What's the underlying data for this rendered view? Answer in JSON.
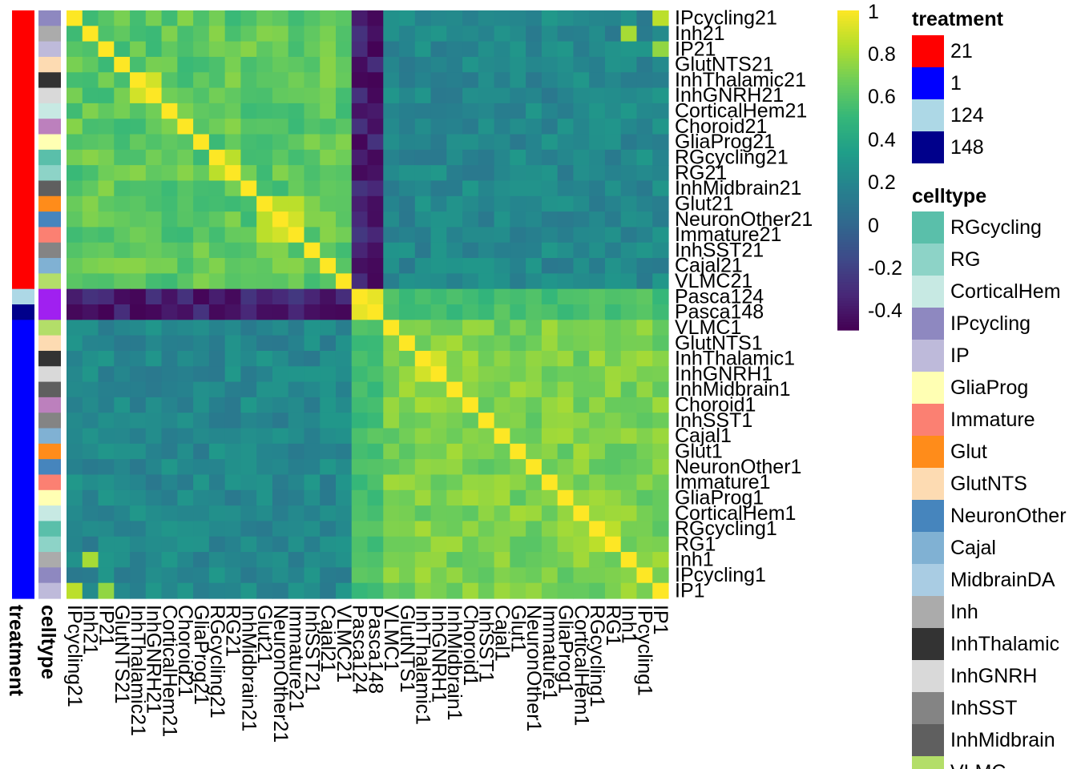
{
  "chart_data": {
    "type": "heatmap",
    "title": "",
    "labels": [
      "IPcycling21",
      "Inh21",
      "IP21",
      "GlutNTS21",
      "InhThalamic21",
      "InhGNRH21",
      "CorticalHem21",
      "Choroid21",
      "GliaProg21",
      "RGcycling21",
      "RG21",
      "InhMidbrain21",
      "Glut21",
      "NeuronOther21",
      "Immature21",
      "InhSST21",
      "Cajal21",
      "VLMC21",
      "Pasca124",
      "Pasca148",
      "VLMC1",
      "GlutNTS1",
      "InhThalamic1",
      "InhGNRH1",
      "InhMidbrain1",
      "Choroid1",
      "InhSST1",
      "Cajal1",
      "Glut1",
      "NeuronOther1",
      "Immature1",
      "GliaProg1",
      "CorticalHem1",
      "RGcycling1",
      "RG1",
      "Inh1",
      "IPcycling1",
      "IP1"
    ],
    "row_labels": [
      "IPcycling21",
      "Inh21",
      "IP21",
      "GlutNTS21",
      "InhThalamic21",
      "InhGNRH21",
      "CorticalHem21",
      "Choroid21",
      "GliaProg21",
      "RGcycling21",
      "RG21",
      "InhMidbrain21",
      "Glut21",
      "NeuronOther21",
      "Immature21",
      "InhSST21",
      "Cajal21",
      "VLMC21",
      "Pasca124",
      "Pasca148",
      "VLMC1",
      "GlutNTS1",
      "InhThalamic1",
      "InhGNRH1",
      "InhMidbrain1",
      "Choroid1",
      "InhSST1",
      "Cajal1",
      "Glut1",
      "NeuronOther1",
      "Immature1",
      "GliaProg1",
      "CorticalHem1",
      "RGcycling1",
      "RG1",
      "Inh1",
      "IPcycling1",
      "IP1"
    ],
    "col_labels": [
      "IPcycling21",
      "Inh21",
      "IP21",
      "GlutNTS21",
      "InhThalamic21",
      "InhGNRH21",
      "CorticalHem21",
      "Choroid21",
      "GliaProg21",
      "RGcycling21",
      "RG21",
      "InhMidbrain21",
      "Glut21",
      "NeuronOther21",
      "Immature21",
      "InhSST21",
      "Cajal21",
      "VLMC21",
      "Pasca124",
      "Pasca148",
      "VLMC1",
      "GlutNTS1",
      "InhThalamic1",
      "InhGNRH1",
      "InhMidbrain1",
      "Choroid1",
      "InhSST1",
      "Cajal1",
      "Glut1",
      "NeuronOther1",
      "Immature1",
      "GliaProg1",
      "CorticalHem1",
      "RGcycling1",
      "RG1",
      "Inh1",
      "IPcycling1",
      "IP1"
    ],
    "row_treatment": [
      "21",
      "21",
      "21",
      "21",
      "21",
      "21",
      "21",
      "21",
      "21",
      "21",
      "21",
      "21",
      "21",
      "21",
      "21",
      "21",
      "21",
      "21",
      "124",
      "148",
      "1",
      "1",
      "1",
      "1",
      "1",
      "1",
      "1",
      "1",
      "1",
      "1",
      "1",
      "1",
      "1",
      "1",
      "1",
      "1",
      "1",
      "1"
    ],
    "row_celltype": [
      "IPcycling",
      "Inh",
      "IP",
      "GlutNTS",
      "InhThalamic",
      "InhGNRH",
      "CorticalHem",
      "Choroid",
      "GliaProg",
      "RGcycling",
      "RG",
      "InhMidbrain",
      "Glut",
      "NeuronOther",
      "Immature",
      "InhSST",
      "Cajal",
      "VLMC",
      "Pasca",
      "Pasca",
      "VLMC",
      "GlutNTS",
      "InhThalamic",
      "InhGNRH",
      "InhMidbrain",
      "Choroid",
      "InhSST",
      "Cajal",
      "Glut",
      "NeuronOther",
      "Immature",
      "GliaProg",
      "CorticalHem",
      "RGcycling",
      "RG",
      "Inh",
      "IPcycling",
      "IP"
    ],
    "value_model": {
      "within_21": 0.62,
      "within_1": 0.7,
      "between_21_1": 0.2,
      "pasca_pasca": 0.95,
      "pasca_1": 0.55,
      "pasca_21_min": -0.5,
      "pasca_21_max": -0.25,
      "diagonal": 1.0
    },
    "special_cells": [
      {
        "row": "InhThalamic21",
        "col": "InhGNRH21",
        "value": 0.9
      },
      {
        "row": "RGcycling21",
        "col": "RG21",
        "value": 0.85
      },
      {
        "row": "InhThalamic1",
        "col": "InhGNRH1",
        "value": 0.9
      },
      {
        "row": "RGcycling1",
        "col": "RG1",
        "value": 0.85
      },
      {
        "row": "Glut21",
        "col": "NeuronOther21",
        "value": 0.85
      },
      {
        "row": "Glut21",
        "col": "Immature21",
        "value": 0.85
      },
      {
        "row": "NeuronOther21",
        "col": "Immature21",
        "value": 0.9
      },
      {
        "row": "IPcycling21",
        "col": "IP1",
        "value": 0.85
      },
      {
        "row": "Inh21",
        "col": "Inh1",
        "value": 0.8
      },
      {
        "row": "IP21",
        "col": "IP1",
        "value": 0.75
      }
    ],
    "colorbar": {
      "ticks": [
        "1",
        "0.8",
        "0.6",
        "0.4",
        "0.2",
        "0",
        "-0.2",
        "-0.4"
      ],
      "tick_values": [
        1,
        0.8,
        0.6,
        0.4,
        0.2,
        0,
        -0.2,
        -0.4
      ],
      "range": [
        -0.5,
        1.0
      ],
      "palette": "viridis"
    },
    "annotation_names": [
      "treatment",
      "celltype"
    ]
  },
  "legend": {
    "treatment": {
      "title": "treatment",
      "entries": [
        {
          "label": "21",
          "color": "#FF0000"
        },
        {
          "label": "1",
          "color": "#0000FF"
        },
        {
          "label": "124",
          "color": "#ADD8E6"
        },
        {
          "label": "148",
          "color": "#00008B"
        }
      ]
    },
    "celltype": {
      "title": "celltype",
      "entries": [
        {
          "label": "RGcycling",
          "color": "#5ABFAA"
        },
        {
          "label": "RG",
          "color": "#8DD3C7"
        },
        {
          "label": "CorticalHem",
          "color": "#C7E9E3"
        },
        {
          "label": "IPcycling",
          "color": "#8E88C0"
        },
        {
          "label": "IP",
          "color": "#BEBADA"
        },
        {
          "label": "GliaProg",
          "color": "#FFFFB3"
        },
        {
          "label": "Immature",
          "color": "#FB8072"
        },
        {
          "label": "Glut",
          "color": "#FF8C1A"
        },
        {
          "label": "GlutNTS",
          "color": "#FDDBB2"
        },
        {
          "label": "NeuronOther",
          "color": "#4685BD"
        },
        {
          "label": "Cajal",
          "color": "#80B1D3"
        },
        {
          "label": "MidbrainDA",
          "color": "#A9CCE3"
        },
        {
          "label": "Inh",
          "color": "#ABABAB"
        },
        {
          "label": "InhThalamic",
          "color": "#333333"
        },
        {
          "label": "InhGNRH",
          "color": "#D9D9D9"
        },
        {
          "label": "InhSST",
          "color": "#848484"
        },
        {
          "label": "InhMidbrain",
          "color": "#5F5F5F"
        },
        {
          "label": "VLMC",
          "color": "#B3DE69"
        }
      ],
      "extra_colors": {
        "Choroid": "#BC80BD",
        "Pasca": "#A020F0"
      }
    }
  }
}
